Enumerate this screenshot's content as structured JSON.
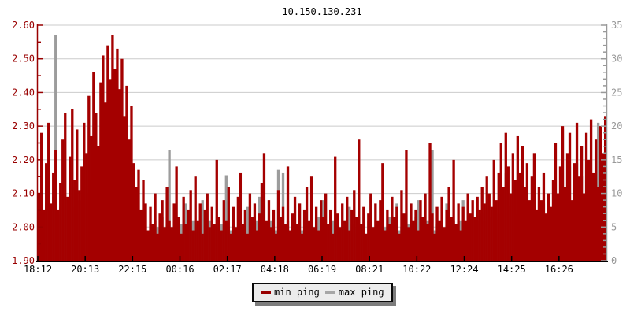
{
  "chart_data": {
    "type": "area",
    "title": "10.150.130.231",
    "grid_color": "#cbcbcb",
    "background": "#ffffff",
    "left_axis": {
      "color": "#990000",
      "min": 1.9,
      "max": 2.6,
      "tick_labels": [
        "1.90",
        "2.00",
        "2.10",
        "2.20",
        "2.30",
        "2.40",
        "2.50",
        "2.60"
      ],
      "minor_step": 0.05
    },
    "right_axis": {
      "color": "#999999",
      "min": 0,
      "max": 35,
      "tick_labels": [
        "0",
        "5",
        "10",
        "15",
        "20",
        "25",
        "30",
        "35"
      ],
      "minor_step": 1
    },
    "x_axis": {
      "color": "#000000",
      "tick_labels": [
        "18:12",
        "20:13",
        "22:15",
        "00:16",
        "02:17",
        "04:18",
        "06:19",
        "08:21",
        "10:22",
        "12:24",
        "14:25",
        "16:26"
      ]
    },
    "legend": {
      "items": [
        {
          "label": "min ping",
          "color": "#990000"
        },
        {
          "label": "max ping",
          "color": "#a6a6a6"
        }
      ]
    },
    "series": [
      {
        "name": "min ping",
        "axis": "left",
        "color": "#a40000",
        "values": [
          2.1,
          2.28,
          2.05,
          2.19,
          2.31,
          2.07,
          2.16,
          2.23,
          2.05,
          2.13,
          2.26,
          2.34,
          2.09,
          2.21,
          2.35,
          2.14,
          2.29,
          2.11,
          2.18,
          2.31,
          2.22,
          2.39,
          2.27,
          2.46,
          2.34,
          2.24,
          2.43,
          2.51,
          2.37,
          2.54,
          2.44,
          2.57,
          2.47,
          2.53,
          2.41,
          2.5,
          2.33,
          2.42,
          2.26,
          2.36,
          2.19,
          2.12,
          2.17,
          2.05,
          2.14,
          2.07,
          1.99,
          2.06,
          2.01,
          2.1,
          1.98,
          2.04,
          2.08,
          2.0,
          2.12,
          2.02,
          2.0,
          2.07,
          2.18,
          2.03,
          1.98,
          2.09,
          2.01,
          2.05,
          2.11,
          1.99,
          2.15,
          2.02,
          2.07,
          1.98,
          2.05,
          2.1,
          2.0,
          2.06,
          2.01,
          2.2,
          2.03,
          1.99,
          2.08,
          2.02,
          2.12,
          1.98,
          2.06,
          2.0,
          2.09,
          2.16,
          2.01,
          2.05,
          1.98,
          2.1,
          2.03,
          2.07,
          1.99,
          2.04,
          2.13,
          2.22,
          2.02,
          2.08,
          2.0,
          2.05,
          1.98,
          2.11,
          2.03,
          2.06,
          2.01,
          2.18,
          1.99,
          2.04,
          2.09,
          2.01,
          2.07,
          1.98,
          2.05,
          2.12,
          2.02,
          2.15,
          2.0,
          2.06,
          1.99,
          2.08,
          2.03,
          2.1,
          2.01,
          2.05,
          1.98,
          2.21,
          2.04,
          2.0,
          2.07,
          2.02,
          2.09,
          1.99,
          2.05,
          2.11,
          2.03,
          2.26,
          2.01,
          2.06,
          1.98,
          2.04,
          2.1,
          2.0,
          2.07,
          2.02,
          2.08,
          2.19,
          1.99,
          2.05,
          2.01,
          2.09,
          2.03,
          2.06,
          1.98,
          2.11,
          2.04,
          2.23,
          2.0,
          2.07,
          2.02,
          2.05,
          1.99,
          2.08,
          2.03,
          2.1,
          2.01,
          2.25,
          2.04,
          1.98,
          2.06,
          2.02,
          2.09,
          2.0,
          2.05,
          2.12,
          2.03,
          2.2,
          2.01,
          2.07,
          1.99,
          2.06,
          2.02,
          2.1,
          2.04,
          2.08,
          2.03,
          2.09,
          2.05,
          2.12,
          2.07,
          2.15,
          2.1,
          2.06,
          2.2,
          2.08,
          2.16,
          2.25,
          2.12,
          2.28,
          2.18,
          2.1,
          2.22,
          2.14,
          2.27,
          2.16,
          2.24,
          2.12,
          2.19,
          2.08,
          2.15,
          2.22,
          2.05,
          2.12,
          2.08,
          2.16,
          2.04,
          2.1,
          2.06,
          2.14,
          2.25,
          2.1,
          2.18,
          2.3,
          2.12,
          2.22,
          2.28,
          2.08,
          2.19,
          2.31,
          2.15,
          2.24,
          2.1,
          2.28,
          2.2,
          2.32,
          2.16,
          2.26,
          2.12,
          2.3,
          2.22,
          2.33
        ]
      },
      {
        "name": "max ping",
        "axis": "right",
        "color": "#9c9c9c",
        "values": [
          7.0,
          9.0,
          6.0,
          8.5,
          7.5,
          6.5,
          9.5,
          33.5,
          7.0,
          8.0,
          10.0,
          9.0,
          7.5,
          9.5,
          11.0,
          8.0,
          9.0,
          7.5,
          9.0,
          11.0,
          10.0,
          12.0,
          14.5,
          11.0,
          10.0,
          12.0,
          11.0,
          13.0,
          12.0,
          11.0,
          12.5,
          11.0,
          10.5,
          12.0,
          11.0,
          10.0,
          9.0,
          10.0,
          8.5,
          9.0,
          7.5,
          6.0,
          5.5,
          5.0,
          6.0,
          4.5,
          4.5,
          5.5,
          4.0,
          6.0,
          5.0,
          4.5,
          6.5,
          4.0,
          5.5,
          16.5,
          4.5,
          5.0,
          6.0,
          4.0,
          5.5,
          4.5,
          8.5,
          5.0,
          4.0,
          6.0,
          5.0,
          4.5,
          5.5,
          9.0,
          4.0,
          5.0,
          6.0,
          4.5,
          5.5,
          5.0,
          4.0,
          5.5,
          4.5,
          12.7,
          5.0,
          4.5,
          6.0,
          4.0,
          5.0,
          5.5,
          4.5,
          5.0,
          8.0,
          4.0,
          5.5,
          4.5,
          6.0,
          9.5,
          5.0,
          4.5,
          5.5,
          4.0,
          6.0,
          5.0,
          4.5,
          13.5,
          4.0,
          13.0,
          5.5,
          6.0,
          4.5,
          5.0,
          4.0,
          5.5,
          8.5,
          4.5,
          6.0,
          5.0,
          4.0,
          5.5,
          5.0,
          4.5,
          6.5,
          4.0,
          9.0,
          5.5,
          4.5,
          5.0,
          6.0,
          4.5,
          5.5,
          4.0,
          5.0,
          6.0,
          4.5,
          8.0,
          5.5,
          4.0,
          5.0,
          6.5,
          4.5,
          5.5,
          4.0,
          6.0,
          9.5,
          5.0,
          4.5,
          5.5,
          4.0,
          6.0,
          5.0,
          4.5,
          6.5,
          4.0,
          5.5,
          8.5,
          4.5,
          5.0,
          6.0,
          4.5,
          5.5,
          4.0,
          5.0,
          6.5,
          9.0,
          4.5,
          5.5,
          4.0,
          6.0,
          5.0,
          16.5,
          4.5,
          5.5,
          5.0,
          6.0,
          4.0,
          8.5,
          5.0,
          4.5,
          6.0,
          5.0,
          4.5,
          6.0,
          9.0,
          4.0,
          5.5,
          5.0,
          6.5,
          5.0,
          6.0,
          5.5,
          7.0,
          6.0,
          7.5,
          6.5,
          5.5,
          8.0,
          6.0,
          7.0,
          11.0,
          6.5,
          13.0,
          8.0,
          6.0,
          9.0,
          7.0,
          12.0,
          8.5,
          9.5,
          6.5,
          8.0,
          6.0,
          7.5,
          11.5,
          5.5,
          7.0,
          6.0,
          8.5,
          5.5,
          6.5,
          6.0,
          7.5,
          12.0,
          6.5,
          9.0,
          19.5,
          7.0,
          10.0,
          14.0,
          6.5,
          8.5,
          14.5,
          9.0,
          12.5,
          7.5,
          15.0,
          10.0,
          13.0,
          8.5,
          12.0,
          20.5,
          11.0,
          15.0,
          9.5
        ]
      }
    ]
  }
}
